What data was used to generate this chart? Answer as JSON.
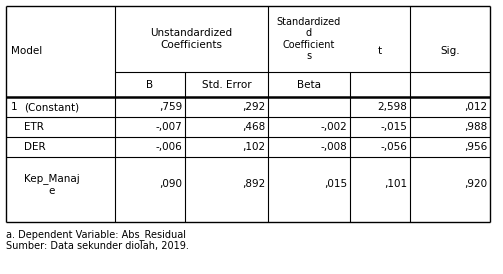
{
  "unstd_label": "Unstandardized\nCoefficients",
  "std_label": "Standardized\nd\nCoefficient\ns",
  "rows": [
    [
      "1",
      "(Constant)",
      ",759",
      ",292",
      "",
      "2,598",
      ",012"
    ],
    [
      "",
      "ETR",
      "-,007",
      ",468",
      "-,002",
      "-,015",
      ",988"
    ],
    [
      "",
      "DER",
      "-,006",
      ",102",
      "-,008",
      "-,056",
      ",956"
    ],
    [
      "",
      "Kep_Manaj\ne",
      ",090",
      ",892",
      ",015",
      ",101",
      ",920"
    ]
  ],
  "footnote1": "a. Dependent Variable: Abs_Residual",
  "footnote2": "Sumber: Data sekunder diolah, 2019.",
  "bg_color": "white",
  "text_color": "black",
  "font_size": 7.5
}
